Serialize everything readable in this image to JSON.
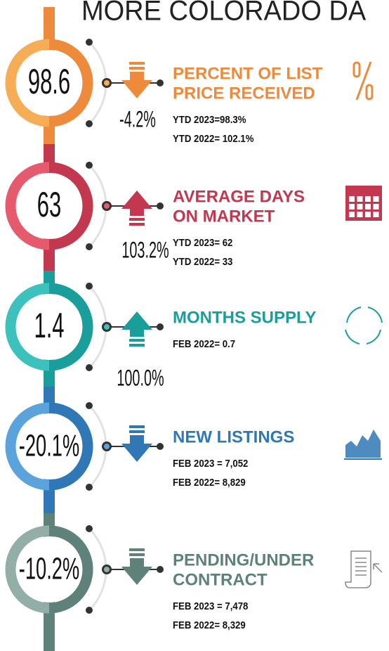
{
  "header": {
    "title": "MORE COLORADO DA"
  },
  "items": [
    {
      "value": "98.6",
      "change": "-4.2%",
      "arrow": "down",
      "color": "#ee8a3c",
      "light": "#f6ad55",
      "title_lines": [
        "PERCENT OF LIST",
        "PRICE RECEIVED"
      ],
      "details": [
        "YTD 2023=98.3%",
        "YTD 2022= 102.1%"
      ],
      "icon": "percent"
    },
    {
      "value": "63",
      "change": "103.2%",
      "arrow": "up",
      "color": "#c3384f",
      "light": "#e65a6e",
      "title_lines": [
        "AVERAGE DAYS",
        "ON MARKET"
      ],
      "details": [
        "YTD 2023= 62",
        "YTD 2022= 33"
      ],
      "icon": "calendar"
    },
    {
      "value": "1.4",
      "change": "100.0%",
      "arrow": "up",
      "color": "#1a9e9c",
      "light": "#3cc1bd",
      "title_lines": [
        "MONTHS SUPPLY"
      ],
      "details": [
        "FEB 2022= 0.7"
      ],
      "icon": "cycle"
    },
    {
      "value": "-20.1%",
      "arrow": "down",
      "color": "#2f78b5",
      "light": "#5aa3dc",
      "title_lines": [
        "NEW LISTINGS"
      ],
      "details": [
        "FEB 2023 = 7,052",
        "FEB 2022= 8,829"
      ],
      "icon": "chart"
    },
    {
      "value": "-10.2%",
      "arrow": "down",
      "color": "#5e8279",
      "light": "#93aea7",
      "title_lines": [
        "PENDING/UNDER",
        "CONTRACT"
      ],
      "details": [
        "FEB 2023 = 7,478",
        "FEB 2022= 8,329"
      ],
      "icon": "scroll"
    }
  ]
}
